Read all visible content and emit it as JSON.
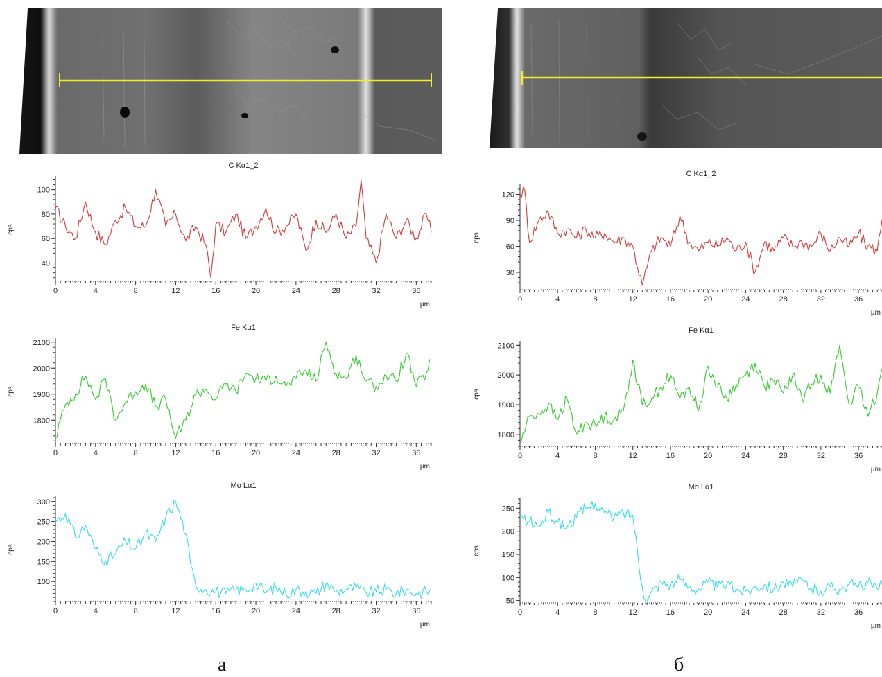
{
  "panels": [
    {
      "caption": "а",
      "chart_data": [
        {
          "type": "line",
          "title": "C Kα1_2",
          "ylabel": "cps",
          "xlabel": "µm",
          "color": "#d43a3a",
          "xlim": [
            0,
            37.5
          ],
          "ylim": [
            25,
            110
          ],
          "yticks": [
            40,
            60,
            80,
            100
          ],
          "xticks": [
            0,
            4,
            8,
            12,
            16,
            20,
            24,
            28,
            32,
            36
          ],
          "series": [
            {
              "x": [
                0,
                1,
                2,
                3,
                4,
                5,
                6,
                7,
                8,
                9,
                10,
                11,
                12,
                13,
                14,
                15,
                15.5,
                16,
                17,
                18,
                19,
                20,
                21,
                22,
                23,
                24,
                25,
                26,
                27,
                28,
                29,
                30,
                30.5,
                31,
                32,
                33,
                34,
                35,
                36,
                37,
                37.5
              ],
              "y": [
                85,
                70,
                60,
                90,
                65,
                55,
                75,
                85,
                70,
                70,
                100,
                70,
                80,
                58,
                70,
                55,
                28,
                72,
                65,
                80,
                60,
                70,
                85,
                65,
                70,
                80,
                50,
                75,
                65,
                80,
                60,
                70,
                108,
                60,
                40,
                80,
                60,
                75,
                60,
                80,
                65
              ]
            }
          ]
        },
        {
          "type": "line",
          "title": "Fe Kα1",
          "ylabel": "cps",
          "xlabel": "µm",
          "color": "#33cc2e",
          "xlim": [
            0,
            37.5
          ],
          "ylim": [
            1710,
            2110
          ],
          "yticks": [
            1800,
            1900,
            2000,
            2100
          ],
          "xticks": [
            0,
            4,
            8,
            12,
            16,
            20,
            24,
            28,
            32,
            36
          ],
          "series": [
            {
              "x": [
                0,
                1,
                2,
                3,
                4,
                5,
                6,
                7,
                8,
                9,
                10,
                11,
                12,
                13,
                14,
                15,
                16,
                17,
                18,
                19,
                20,
                21,
                22,
                23,
                24,
                25,
                26,
                27,
                28,
                29,
                30,
                31,
                32,
                33,
                34,
                35,
                36,
                37,
                37.5
              ],
              "y": [
                1730,
                1860,
                1900,
                1970,
                1880,
                1960,
                1800,
                1870,
                1910,
                1940,
                1850,
                1880,
                1730,
                1800,
                1900,
                1920,
                1880,
                1940,
                1910,
                1980,
                1960,
                1950,
                1970,
                1930,
                1960,
                1990,
                1950,
                2100,
                1980,
                1960,
                2050,
                1950,
                1930,
                1970,
                1950,
                2060,
                1930,
                1980,
                2030
              ]
            }
          ]
        },
        {
          "type": "line",
          "title": "Mo Lα1",
          "ylabel": "cps",
          "xlabel": "µm",
          "color": "#33ddee",
          "xlim": [
            0,
            37.5
          ],
          "ylim": [
            50,
            310
          ],
          "yticks": [
            100,
            150,
            200,
            250,
            300
          ],
          "xticks": [
            0,
            4,
            8,
            12,
            16,
            20,
            24,
            28,
            32,
            36
          ],
          "series": [
            {
              "x": [
                0,
                1,
                2,
                3,
                4,
                5,
                6,
                7,
                8,
                9,
                10,
                11,
                12,
                13,
                13.5,
                14,
                15,
                16,
                17,
                18,
                19,
                20,
                21,
                22,
                23,
                24,
                25,
                26,
                27,
                28,
                29,
                30,
                31,
                32,
                33,
                34,
                35,
                36,
                37,
                37.5
              ],
              "y": [
                250,
                270,
                210,
                240,
                180,
                150,
                170,
                200,
                180,
                220,
                200,
                260,
                300,
                220,
                140,
                90,
                80,
                75,
                70,
                80,
                78,
                95,
                72,
                85,
                70,
                80,
                75,
                70,
                95,
                75,
                80,
                85,
                72,
                75,
                80,
                70,
                80,
                70,
                75,
                80
              ]
            }
          ]
        }
      ]
    },
    {
      "caption": "б",
      "chart_data": [
        {
          "type": "line",
          "title": "C Kα1_2",
          "ylabel": "cps",
          "xlabel": "µm",
          "color": "#d43a3a",
          "xlim": [
            0,
            38.5
          ],
          "ylim": [
            10,
            130
          ],
          "yticks": [
            30,
            60,
            90,
            120
          ],
          "xticks": [
            0,
            4,
            8,
            12,
            16,
            20,
            24,
            28,
            32,
            36
          ],
          "series": [
            {
              "x": [
                0,
                0.5,
                1,
                2,
                3,
                4,
                5,
                6,
                7,
                8,
                9,
                10,
                11,
                12,
                13,
                14,
                15,
                16,
                17,
                18,
                19,
                20,
                21,
                22,
                23,
                24,
                25,
                26,
                27,
                28,
                29,
                30,
                31,
                32,
                33,
                34,
                35,
                36,
                37,
                38,
                38.5
              ],
              "y": [
                120,
                125,
                65,
                90,
                100,
                75,
                80,
                70,
                80,
                70,
                75,
                65,
                70,
                60,
                15,
                55,
                70,
                60,
                95,
                65,
                55,
                65,
                60,
                70,
                55,
                65,
                30,
                65,
                55,
                70,
                60,
                65,
                60,
                75,
                55,
                70,
                60,
                75,
                60,
                55,
                90
              ]
            }
          ]
        },
        {
          "type": "line",
          "title": "Fe Kα1",
          "ylabel": "cps",
          "xlabel": "µm",
          "color": "#33cc2e",
          "xlim": [
            0,
            38.5
          ],
          "ylim": [
            1760,
            2110
          ],
          "yticks": [
            1800,
            1900,
            2000,
            2100
          ],
          "xticks": [
            0,
            4,
            8,
            12,
            16,
            20,
            24,
            28,
            32,
            36
          ],
          "series": [
            {
              "x": [
                0,
                1,
                2,
                3,
                4,
                5,
                6,
                7,
                8,
                9,
                10,
                11,
                12,
                13,
                14,
                15,
                16,
                17,
                18,
                19,
                20,
                21,
                22,
                23,
                24,
                25,
                26,
                27,
                28,
                29,
                30,
                31,
                32,
                33,
                34,
                35,
                36,
                37,
                38,
                38.5
              ],
              "y": [
                1770,
                1860,
                1870,
                1900,
                1850,
                1920,
                1800,
                1840,
                1830,
                1860,
                1850,
                1880,
                2050,
                1900,
                1920,
                1960,
                2000,
                1920,
                1960,
                1880,
                2030,
                1960,
                1920,
                1970,
                2000,
                2040,
                1960,
                1980,
                1940,
                2000,
                1920,
                1970,
                2000,
                1940,
                2100,
                1900,
                1960,
                1860,
                1940,
                2020
              ]
            }
          ]
        },
        {
          "type": "line",
          "title": "Mo Lα1",
          "ylabel": "cps",
          "xlabel": "µm",
          "color": "#33ddee",
          "xlim": [
            0,
            38.5
          ],
          "ylim": [
            45,
            270
          ],
          "yticks": [
            50,
            100,
            150,
            200,
            250
          ],
          "xticks": [
            0,
            4,
            8,
            12,
            16,
            20,
            24,
            28,
            32,
            36
          ],
          "series": [
            {
              "x": [
                0,
                1,
                2,
                3,
                4,
                5,
                6,
                7,
                8,
                9,
                10,
                11,
                12,
                13,
                13.5,
                14,
                15,
                16,
                17,
                18,
                19,
                20,
                21,
                22,
                23,
                24,
                25,
                26,
                27,
                28,
                29,
                30,
                31,
                32,
                33,
                34,
                35,
                36,
                37,
                38,
                38.5
              ],
              "y": [
                230,
                220,
                210,
                240,
                220,
                210,
                230,
                250,
                260,
                240,
                230,
                240,
                235,
                80,
                48,
                70,
                90,
                85,
                95,
                80,
                75,
                90,
                80,
                85,
                75,
                70,
                80,
                85,
                75,
                90,
                80,
                95,
                75,
                70,
                80,
                75,
                85,
                80,
                90,
                75,
                85
              ]
            }
          ]
        }
      ]
    }
  ]
}
